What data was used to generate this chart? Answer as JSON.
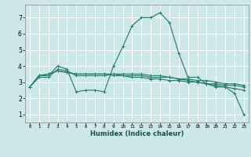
{
  "xlabel": "Humidex (Indice chaleur)",
  "bg_color": "#cce8e8",
  "grid_color": "#ffffff",
  "line_color": "#2e7d6e",
  "xlim": [
    -0.5,
    23.5
  ],
  "ylim": [
    0.5,
    7.8
  ],
  "xticks": [
    0,
    1,
    2,
    3,
    4,
    5,
    6,
    7,
    8,
    9,
    10,
    11,
    12,
    13,
    14,
    15,
    16,
    17,
    18,
    19,
    20,
    21,
    22,
    23
  ],
  "yticks": [
    1,
    2,
    3,
    4,
    5,
    6,
    7
  ],
  "series": [
    [
      2.7,
      3.4,
      3.4,
      4.0,
      3.8,
      2.4,
      2.5,
      2.5,
      2.4,
      4.0,
      5.2,
      6.5,
      7.0,
      7.0,
      7.3,
      6.7,
      4.8,
      3.3,
      3.3,
      2.9,
      2.7,
      2.7,
      2.3,
      1.0
    ],
    [
      2.7,
      3.4,
      3.5,
      3.7,
      3.6,
      3.5,
      3.5,
      3.5,
      3.5,
      3.5,
      3.4,
      3.4,
      3.4,
      3.3,
      3.3,
      3.3,
      3.2,
      3.2,
      3.1,
      3.1,
      3.0,
      2.9,
      2.9,
      2.8
    ],
    [
      2.7,
      3.4,
      3.5,
      3.7,
      3.6,
      3.5,
      3.5,
      3.5,
      3.5,
      3.4,
      3.4,
      3.3,
      3.3,
      3.2,
      3.2,
      3.1,
      3.1,
      3.0,
      3.0,
      2.9,
      2.9,
      2.8,
      2.8,
      2.7
    ],
    [
      2.7,
      3.3,
      3.3,
      3.8,
      3.7,
      3.4,
      3.4,
      3.4,
      3.4,
      3.5,
      3.5,
      3.5,
      3.5,
      3.4,
      3.4,
      3.3,
      3.2,
      3.1,
      3.0,
      2.9,
      2.8,
      2.7,
      2.6,
      2.5
    ]
  ]
}
